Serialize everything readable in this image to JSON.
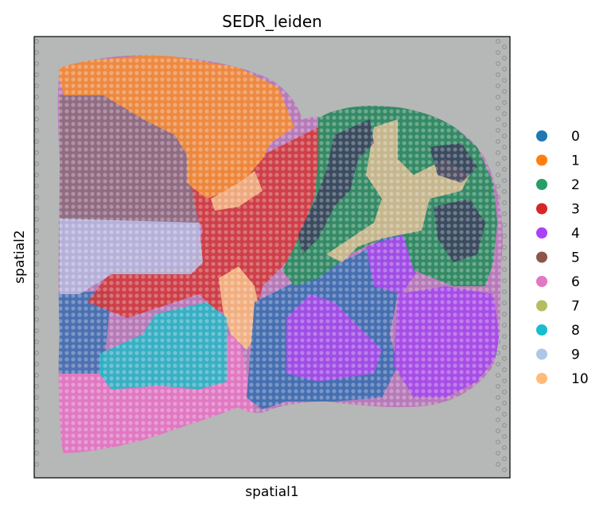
{
  "chart_data": {
    "type": "scatter",
    "title": "SEDR_leiden",
    "xlabel": "spatial1",
    "ylabel": "spatial2",
    "grid": false,
    "legend_position": "right",
    "background": "H&E tissue image (mouse brain section)",
    "legend": [
      {
        "name": "0",
        "color": "#1f77b4"
      },
      {
        "name": "1",
        "color": "#ff7f0e"
      },
      {
        "name": "2",
        "color": "#279e68"
      },
      {
        "name": "3",
        "color": "#d62728"
      },
      {
        "name": "4",
        "color": "#aa40fc"
      },
      {
        "name": "5",
        "color": "#8c564b"
      },
      {
        "name": "6",
        "color": "#e377c2"
      },
      {
        "name": "7",
        "color": "#b5bd61"
      },
      {
        "name": "8",
        "color": "#17becf"
      },
      {
        "name": "9",
        "color": "#aec7e8"
      },
      {
        "name": "10",
        "color": "#ffbb78"
      }
    ]
  }
}
